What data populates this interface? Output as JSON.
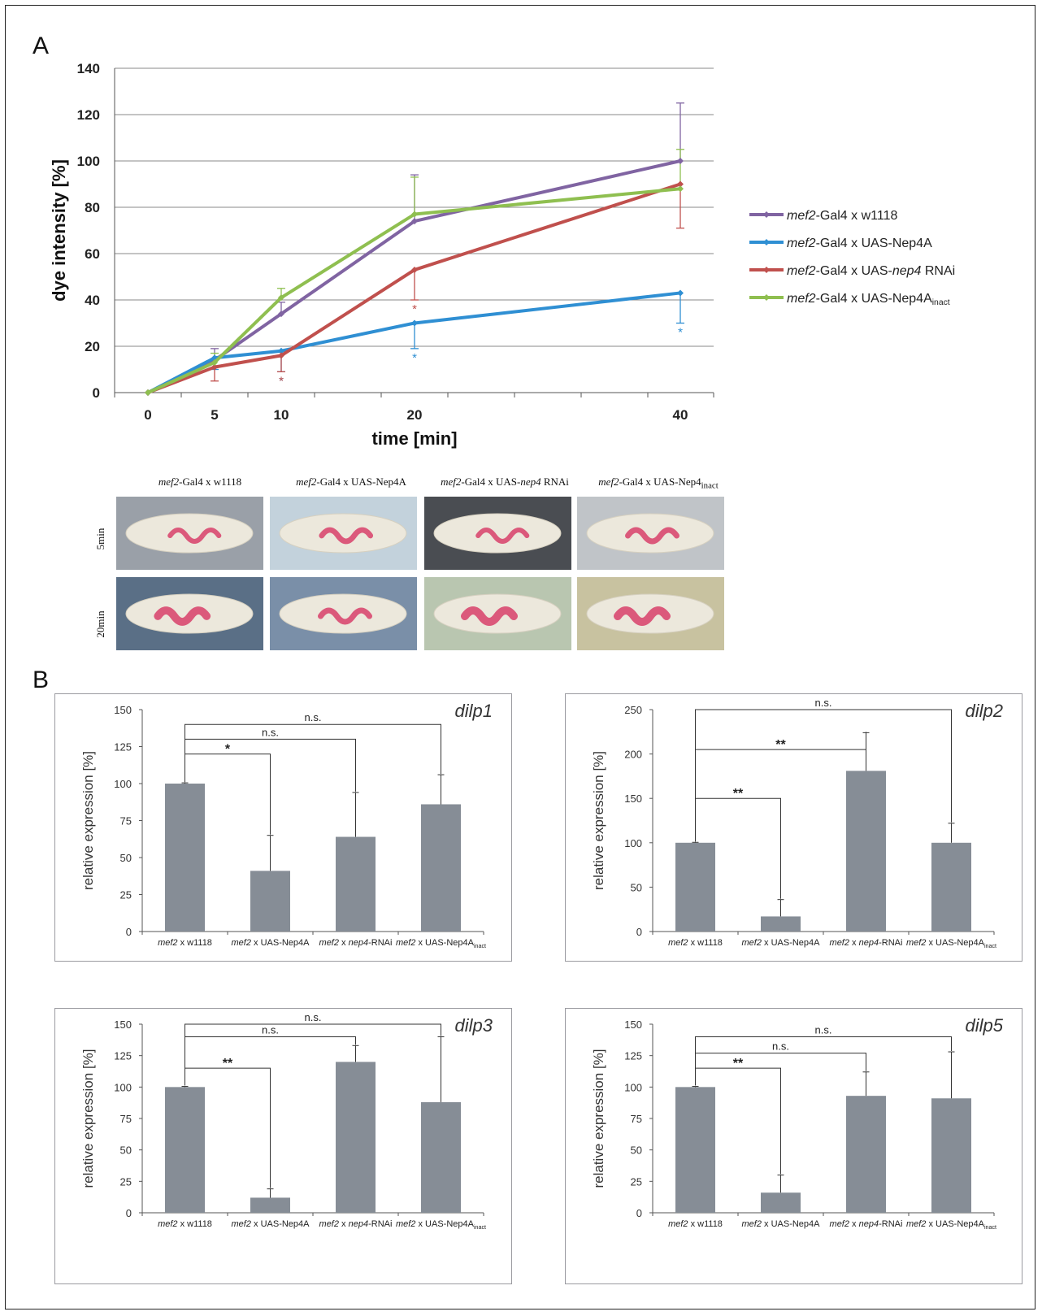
{
  "panel_a": {
    "letter": "A"
  },
  "panel_b": {
    "letter": "B"
  },
  "photos": {
    "columns": [
      "mef2-Gal4 x w1118",
      "mef2-Gal4 x UAS-Nep4A",
      "mef2-Gal4 x UAS-nep4 RNAi",
      "mef2-Gal4 x UAS-Nep4inact"
    ],
    "rows": [
      "5min",
      "20min"
    ]
  },
  "colors": {
    "purple": "#8064a2",
    "blue": "#2f8fd3",
    "red": "#c0504d",
    "green": "#8fbf50",
    "bar": "#868d96"
  },
  "chart_data": [
    {
      "type": "line",
      "xlabel": "time [min]",
      "ylabel": "dye intensity [%]",
      "x": [
        0,
        5,
        10,
        20,
        40
      ],
      "ylim": [
        0,
        140
      ],
      "yticks": [
        0,
        20,
        40,
        60,
        80,
        100,
        120,
        140
      ],
      "grid": true,
      "legend_position": "right",
      "series": [
        {
          "name": "mef2-Gal4 x w1118",
          "color": "#8064a2",
          "values": [
            0,
            14,
            34,
            74,
            100
          ],
          "error": [
            0,
            5,
            5,
            20,
            25
          ]
        },
        {
          "name": "mef2-Gal4 x UAS-Nep4A",
          "color": "#2f8fd3",
          "values": [
            0,
            15,
            18,
            30,
            43
          ],
          "error": [
            0,
            5,
            9,
            11,
            13
          ],
          "significance": [
            "",
            "",
            "*",
            "*",
            "*"
          ]
        },
        {
          "name": "mef2-Gal4 x UAS-nep4 RNAi",
          "color": "#c0504d",
          "values": [
            0,
            11,
            16,
            53,
            90
          ],
          "error": [
            0,
            6,
            7,
            13,
            19
          ],
          "significance": [
            "",
            "",
            "*",
            "*",
            ""
          ]
        },
        {
          "name": "mef2-Gal4 x UAS-Nep4Ainact",
          "color": "#8fbf50",
          "values": [
            0,
            13,
            41,
            77,
            88
          ],
          "error": [
            0,
            4,
            4,
            16,
            17
          ]
        }
      ]
    },
    {
      "type": "bar",
      "title": "dilp1",
      "ylabel": "relative expression [%]",
      "categories": [
        "mef2 x w1118",
        "mef2 x UAS-Nep4A",
        "mef2 x nep4-RNAi",
        "mef2 x UAS-Nep4Ainact"
      ],
      "values": [
        100,
        41,
        64,
        86
      ],
      "error": [
        0.5,
        24,
        30,
        20
      ],
      "ylim": [
        0,
        150
      ],
      "yticks": [
        0,
        25,
        50,
        75,
        100,
        125,
        150
      ],
      "comparisons": [
        {
          "from": 0,
          "to": 1,
          "label": "*"
        },
        {
          "from": 0,
          "to": 2,
          "label": "n.s."
        },
        {
          "from": 0,
          "to": 3,
          "label": "n.s."
        }
      ]
    },
    {
      "type": "bar",
      "title": "dilp2",
      "ylabel": "relative expression [%]",
      "categories": [
        "mef2 x w1118",
        "mef2 x UAS-Nep4A",
        "mef2 x nep4-RNAi",
        "mef2 x UAS-Nep4Ainact"
      ],
      "values": [
        100,
        17,
        181,
        100
      ],
      "error": [
        0.5,
        19,
        43,
        22
      ],
      "ylim": [
        0,
        250
      ],
      "yticks": [
        0,
        50,
        100,
        150,
        200,
        250
      ],
      "comparisons": [
        {
          "from": 0,
          "to": 1,
          "label": "**"
        },
        {
          "from": 0,
          "to": 2,
          "label": "**"
        },
        {
          "from": 0,
          "to": 3,
          "label": "n.s."
        }
      ]
    },
    {
      "type": "bar",
      "title": "dilp3",
      "ylabel": "relative expression [%]",
      "categories": [
        "mef2 x w1118",
        "mef2 x UAS-Nep4A",
        "mef2 x nep4-RNAi",
        "mef2 x UAS-Nep4Ainact"
      ],
      "values": [
        100,
        12,
        120,
        88
      ],
      "error": [
        0.5,
        7,
        13,
        52
      ],
      "ylim": [
        0,
        150
      ],
      "yticks": [
        0,
        25,
        50,
        75,
        100,
        125,
        150
      ],
      "comparisons": [
        {
          "from": 0,
          "to": 1,
          "label": "**"
        },
        {
          "from": 0,
          "to": 2,
          "label": "n.s."
        },
        {
          "from": 0,
          "to": 3,
          "label": "n.s."
        }
      ]
    },
    {
      "type": "bar",
      "title": "dilp5",
      "ylabel": "relative expression [%]",
      "categories": [
        "mef2 x w1118",
        "mef2 x UAS-Nep4A",
        "mef2 x nep4-RNAi",
        "mef2 x UAS-Nep4Ainact"
      ],
      "values": [
        100,
        16,
        93,
        91
      ],
      "error": [
        0.5,
        14,
        19,
        37
      ],
      "ylim": [
        0,
        150
      ],
      "yticks": [
        0,
        25,
        50,
        75,
        100,
        125,
        150
      ],
      "comparisons": [
        {
          "from": 0,
          "to": 1,
          "label": "**"
        },
        {
          "from": 0,
          "to": 2,
          "label": "n.s."
        },
        {
          "from": 0,
          "to": 3,
          "label": "n.s."
        }
      ]
    }
  ]
}
